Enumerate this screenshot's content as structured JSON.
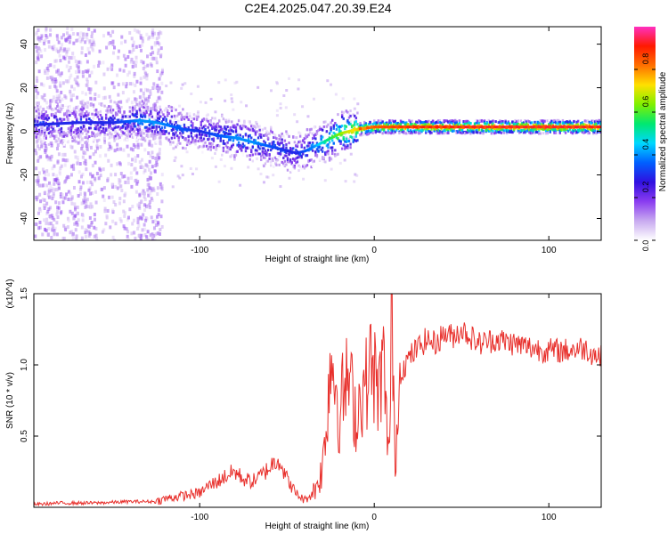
{
  "title": "C2E4.2025.047.20.39.E24",
  "chart_data": [
    {
      "type": "heatmap",
      "xlabel": "Height of straight line (km)",
      "ylabel": "Frequency (Hz)",
      "xlim": [
        -195,
        130
      ],
      "ylim": [
        -50,
        48
      ],
      "xticks": [
        -100,
        0,
        100
      ],
      "yticks": [
        -40,
        -20,
        0,
        20,
        40
      ],
      "grid": false,
      "colorbar": {
        "label": "Normalized spectral amplitude",
        "range": [
          0,
          1
        ],
        "ticks": [
          "0.0",
          "0.2",
          "0.4",
          "0.6",
          "0.8"
        ],
        "colors": [
          "#ffffff",
          "#c8aaf0",
          "#8a3cf0",
          "#3010e0",
          "#0060ff",
          "#00d8ff",
          "#00e870",
          "#80f000",
          "#ffe000",
          "#ff7000",
          "#ff1a00",
          "#ff30c0"
        ]
      },
      "ridge": {
        "x": [
          -195,
          -170,
          -150,
          -135,
          -125,
          -110,
          -100,
          -90,
          -80,
          -70,
          -60,
          -50,
          -45,
          -40,
          -35,
          -30,
          -20,
          -10,
          0,
          20,
          50,
          100,
          130
        ],
        "freq": [
          3,
          4,
          4,
          5,
          4,
          1,
          0,
          -2,
          -3,
          -5,
          -7,
          -9,
          -10,
          -9,
          -7,
          -5,
          -1,
          1,
          2,
          2,
          2,
          2,
          2
        ],
        "amplitude": [
          0.3,
          0.3,
          0.3,
          0.4,
          0.4,
          0.35,
          0.3,
          0.35,
          0.4,
          0.4,
          0.35,
          0.3,
          0.3,
          0.35,
          0.4,
          0.5,
          0.65,
          0.75,
          0.85,
          0.9,
          0.92,
          0.93,
          0.92
        ]
      },
      "background_noise_region_x": [
        -195,
        -122
      ]
    },
    {
      "type": "line",
      "xlabel": "Height of straight line (km)",
      "ylabel": "SNR (10 * v/v)",
      "multiplier": "(x10^4)",
      "xlim": [
        -195,
        130
      ],
      "ylim": [
        0,
        1.5
      ],
      "xticks": [
        -100,
        0,
        100
      ],
      "yticks": [
        "0.5",
        "1.0",
        "1.5"
      ],
      "grid": false,
      "series": [
        {
          "color": "#e8302c",
          "x": [
            -195,
            -180,
            -160,
            -140,
            -125,
            -120,
            -110,
            -100,
            -95,
            -90,
            -85,
            -80,
            -75,
            -70,
            -65,
            -60,
            -55,
            -50,
            -45,
            -40,
            -35,
            -30,
            -28,
            -25,
            -22,
            -20,
            -18,
            -15,
            -12,
            -10,
            -8,
            -5,
            -2,
            0,
            2,
            5,
            7,
            9,
            10,
            11,
            12,
            15,
            20,
            25,
            30,
            35,
            40,
            45,
            50,
            55,
            60,
            70,
            80,
            90,
            100,
            110,
            120,
            130
          ],
          "y": [
            0.02,
            0.03,
            0.03,
            0.04,
            0.04,
            0.06,
            0.08,
            0.1,
            0.15,
            0.18,
            0.22,
            0.25,
            0.2,
            0.18,
            0.22,
            0.28,
            0.35,
            0.2,
            0.1,
            0.05,
            0.1,
            0.25,
            0.5,
            1.05,
            0.9,
            0.6,
            0.8,
            0.9,
            0.75,
            0.6,
            0.8,
            0.85,
            1.0,
            0.95,
            0.75,
            1.05,
            0.6,
            0.4,
            1.5,
            0.7,
            0.35,
            0.95,
            1.05,
            1.12,
            1.18,
            1.15,
            1.22,
            1.2,
            1.25,
            1.2,
            1.15,
            1.18,
            1.15,
            1.12,
            1.1,
            1.1,
            1.12,
            1.05
          ]
        }
      ]
    }
  ]
}
